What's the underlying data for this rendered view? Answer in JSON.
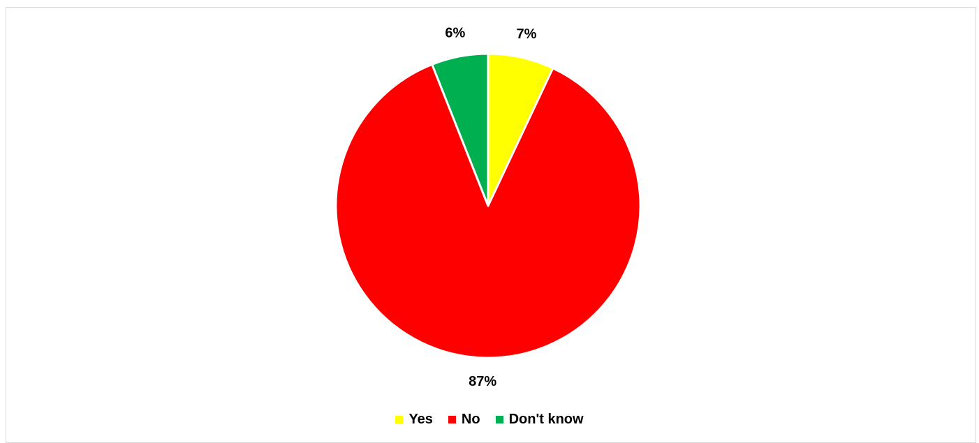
{
  "chart_data": {
    "type": "pie",
    "title": "",
    "categories": [
      "Yes",
      "No",
      "Don't know"
    ],
    "values": [
      7,
      87,
      6
    ],
    "data_labels": [
      "7%",
      "87%",
      "6%"
    ],
    "colors": [
      "#ffff00",
      "#ff0000",
      "#00b050"
    ],
    "slice_border_color": "#ffffff",
    "legend": {
      "position": "bottom",
      "entries": [
        "Yes",
        "No",
        "Don't know"
      ]
    }
  }
}
